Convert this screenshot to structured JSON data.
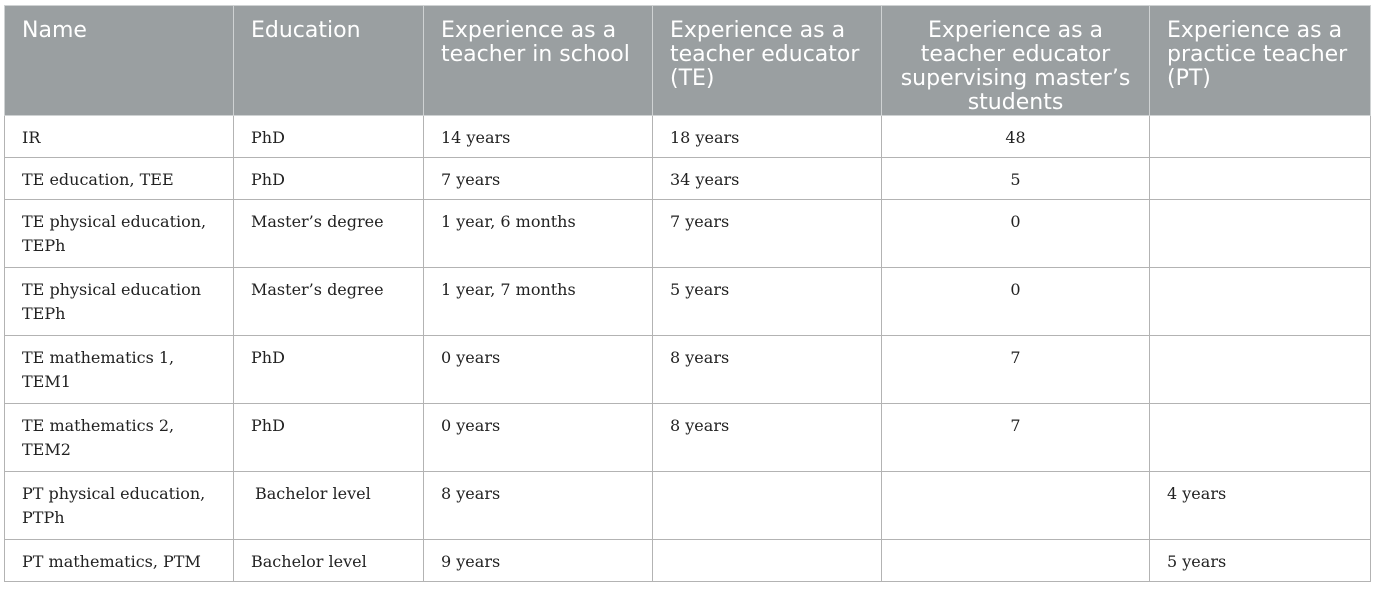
{
  "table": {
    "headers": [
      "Name",
      "Education",
      "Experience as a teacher in school",
      "Experience as a teacher educator (TE)",
      "Experience as a teacher educator supervising master’s students",
      "Experience as a practice teacher (PT)"
    ],
    "rows": [
      [
        "IR",
        "PhD",
        "14 years",
        "18 years",
        "48",
        ""
      ],
      [
        "TE education, TEE",
        "PhD",
        "7 years",
        "34 years",
        "5",
        ""
      ],
      [
        "TE physical education, TEPh",
        "Master’s degree",
        "1 year, 6 months",
        "7 years",
        "0",
        ""
      ],
      [
        "TE physical education TEPh",
        "Master’s degree",
        "1 year, 7 months",
        "5 years",
        "0",
        ""
      ],
      [
        "TE mathematics 1, TEM1",
        "PhD",
        "0 years",
        "8 years",
        "7",
        ""
      ],
      [
        "TE mathematics 2, TEM2",
        "PhD",
        "0 years",
        "8 years",
        "7",
        ""
      ],
      [
        "PT physical education, PTPh",
        "Bachelor level",
        "8 years",
        "",
        "",
        "4 years"
      ],
      [
        "PT mathematics, PTM",
        "Bachelor level",
        "9 years",
        "",
        "",
        "5 years"
      ]
    ]
  }
}
